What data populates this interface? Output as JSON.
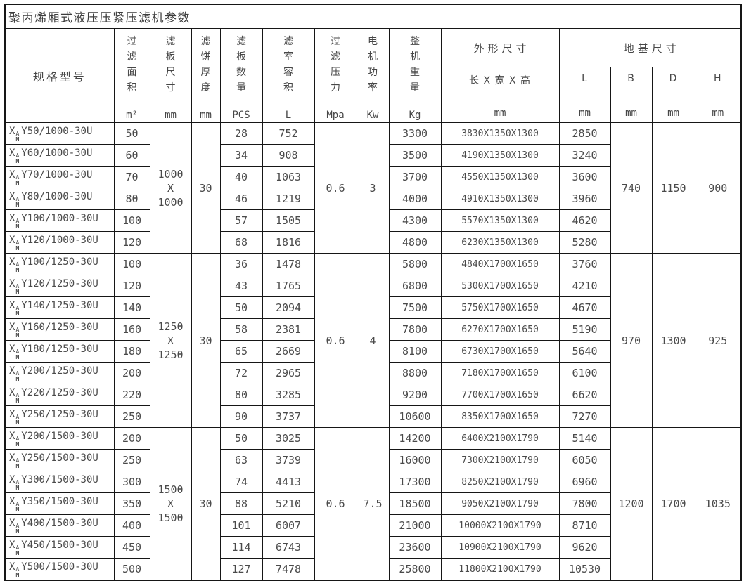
{
  "title": "聚丙烯厢式液压压紧压滤机参数",
  "header": {
    "model_label": "规格型号",
    "vertical_columns": [
      {
        "label": "过滤面积",
        "unit": "m²"
      },
      {
        "label": "滤板尺寸",
        "unit": "mm"
      },
      {
        "label": "滤饼厚度",
        "unit": "mm"
      },
      {
        "label": "滤板数量",
        "unit": "PCS"
      },
      {
        "label": "滤室容积",
        "unit": "L"
      },
      {
        "label": "过滤压力",
        "unit": "Mpa"
      },
      {
        "label": "电机功率",
        "unit": "Kw"
      },
      {
        "label": "整机重量",
        "unit": "Kg"
      }
    ],
    "outline_label": "外形尺寸",
    "outline_sub": {
      "label": "长 X 宽 X 高",
      "unit": "mm"
    },
    "foundation_label": "地基尺寸",
    "foundation_sub": [
      {
        "label": "L",
        "unit": "mm"
      },
      {
        "label": "B",
        "unit": "mm"
      },
      {
        "label": "D",
        "unit": "mm"
      },
      {
        "label": "H",
        "unit": "mm"
      }
    ]
  },
  "model_prefix": {
    "base": "X",
    "sup": "A",
    "sub": "M"
  },
  "groups": [
    {
      "plate_size_lines": [
        "1000",
        "X",
        "1000"
      ],
      "cake_thickness_mm": "30",
      "pressure_mpa": "0.6",
      "power_kw": "3",
      "b_mm": "740",
      "d_mm": "1150",
      "h_mm": "900",
      "rows": [
        {
          "model": "Y50/1000-30U",
          "area_m2": "50",
          "pcs": "28",
          "volume_l": "752",
          "weight_kg": "3300",
          "dims_mm": "3830X1350X1300",
          "l_mm": "2850"
        },
        {
          "model": "Y60/1000-30U",
          "area_m2": "60",
          "pcs": "34",
          "volume_l": "908",
          "weight_kg": "3500",
          "dims_mm": "4190X1350X1300",
          "l_mm": "3240"
        },
        {
          "model": "Y70/1000-30U",
          "area_m2": "70",
          "pcs": "40",
          "volume_l": "1063",
          "weight_kg": "3700",
          "dims_mm": "4550X1350X1300",
          "l_mm": "3600"
        },
        {
          "model": "Y80/1000-30U",
          "area_m2": "80",
          "pcs": "46",
          "volume_l": "1219",
          "weight_kg": "4000",
          "dims_mm": "4910X1350X1300",
          "l_mm": "3960"
        },
        {
          "model": "Y100/1000-30U",
          "area_m2": "100",
          "pcs": "57",
          "volume_l": "1505",
          "weight_kg": "4300",
          "dims_mm": "5570X1350X1300",
          "l_mm": "4620"
        },
        {
          "model": "Y120/1000-30U",
          "area_m2": "120",
          "pcs": "68",
          "volume_l": "1816",
          "weight_kg": "4800",
          "dims_mm": "6230X1350X1300",
          "l_mm": "5280"
        }
      ]
    },
    {
      "plate_size_lines": [
        "1250",
        "X",
        "1250"
      ],
      "cake_thickness_mm": "30",
      "pressure_mpa": "0.6",
      "power_kw": "4",
      "b_mm": "970",
      "d_mm": "1300",
      "h_mm": "925",
      "rows": [
        {
          "model": "Y100/1250-30U",
          "area_m2": "100",
          "pcs": "36",
          "volume_l": "1478",
          "weight_kg": "5800",
          "dims_mm": "4840X1700X1650",
          "l_mm": "3760"
        },
        {
          "model": "Y120/1250-30U",
          "area_m2": "120",
          "pcs": "43",
          "volume_l": "1765",
          "weight_kg": "6800",
          "dims_mm": "5300X1700X1650",
          "l_mm": "4210"
        },
        {
          "model": "Y140/1250-30U",
          "area_m2": "140",
          "pcs": "50",
          "volume_l": "2094",
          "weight_kg": "7500",
          "dims_mm": "5750X1700X1650",
          "l_mm": "4670"
        },
        {
          "model": "Y160/1250-30U",
          "area_m2": "160",
          "pcs": "58",
          "volume_l": "2381",
          "weight_kg": "7800",
          "dims_mm": "6270X1700X1650",
          "l_mm": "5190"
        },
        {
          "model": "Y180/1250-30U",
          "area_m2": "180",
          "pcs": "65",
          "volume_l": "2669",
          "weight_kg": "8100",
          "dims_mm": "6730X1700X1650",
          "l_mm": "5640"
        },
        {
          "model": "Y200/1250-30U",
          "area_m2": "200",
          "pcs": "72",
          "volume_l": "2965",
          "weight_kg": "8800",
          "dims_mm": "7180X1700X1650",
          "l_mm": "6100"
        },
        {
          "model": "Y220/1250-30U",
          "area_m2": "220",
          "pcs": "80",
          "volume_l": "3285",
          "weight_kg": "9200",
          "dims_mm": "7700X1700X1650",
          "l_mm": "6620"
        },
        {
          "model": "Y250/1250-30U",
          "area_m2": "250",
          "pcs": "90",
          "volume_l": "3737",
          "weight_kg": "10600",
          "dims_mm": "8350X1700X1650",
          "l_mm": "7270"
        }
      ]
    },
    {
      "plate_size_lines": [
        "1500",
        "X",
        "1500"
      ],
      "cake_thickness_mm": "30",
      "pressure_mpa": "0.6",
      "power_kw": "7.5",
      "b_mm": "1200",
      "d_mm": "1700",
      "h_mm": "1035",
      "rows": [
        {
          "model": "Y200/1500-30U",
          "area_m2": "200",
          "pcs": "50",
          "volume_l": "3025",
          "weight_kg": "14200",
          "dims_mm": "6400X2100X1790",
          "l_mm": "5140"
        },
        {
          "model": "Y250/1500-30U",
          "area_m2": "250",
          "pcs": "63",
          "volume_l": "3739",
          "weight_kg": "16000",
          "dims_mm": "7300X2100X1790",
          "l_mm": "6050"
        },
        {
          "model": "Y300/1500-30U",
          "area_m2": "300",
          "pcs": "74",
          "volume_l": "4413",
          "weight_kg": "17300",
          "dims_mm": "8250X2100X1790",
          "l_mm": "6960"
        },
        {
          "model": "Y350/1500-30U",
          "area_m2": "350",
          "pcs": "88",
          "volume_l": "5210",
          "weight_kg": "18500",
          "dims_mm": "9050X2100X1790",
          "l_mm": "7800"
        },
        {
          "model": "Y400/1500-30U",
          "area_m2": "400",
          "pcs": "101",
          "volume_l": "6007",
          "weight_kg": "21000",
          "dims_mm": "10000X2100X1790",
          "l_mm": "8710"
        },
        {
          "model": "Y450/1500-30U",
          "area_m2": "450",
          "pcs": "114",
          "volume_l": "6743",
          "weight_kg": "23600",
          "dims_mm": "10900X2100X1790",
          "l_mm": "9620"
        },
        {
          "model": "Y500/1500-30U",
          "area_m2": "500",
          "pcs": "127",
          "volume_l": "7478",
          "weight_kg": "25800",
          "dims_mm": "11800X2100X1790",
          "l_mm": "10530"
        }
      ]
    }
  ]
}
